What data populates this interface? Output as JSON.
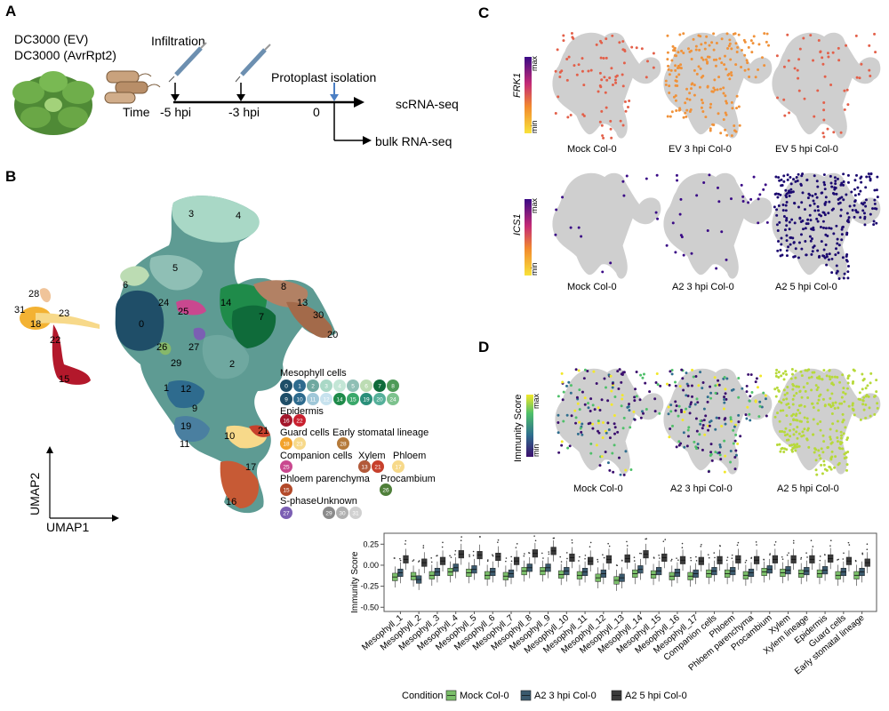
{
  "panels": {
    "a": "A",
    "b": "B",
    "c": "C",
    "d": "D"
  },
  "panel_a": {
    "strain_ev": "DC3000 (EV)",
    "strain_avr": "DC3000 (AvrRpt2)",
    "infiltration": "Infiltration",
    "time_label": "Time",
    "t1": "-5 hpi",
    "t2": "-3 hpi",
    "t3": "0",
    "protoplast": "Protoplast isolation",
    "scrna": "scRNA-seq",
    "bulk": "bulk RNA-seq"
  },
  "panel_b": {
    "umap1": "UMAP1",
    "umap2": "UMAP2",
    "clusters": [
      "3",
      "4",
      "5",
      "6",
      "24",
      "25",
      "14",
      "8",
      "13",
      "30",
      "20",
      "7",
      "28",
      "31",
      "23",
      "18",
      "22",
      "19",
      "0",
      "26",
      "27",
      "29",
      "2",
      "1",
      "12",
      "9",
      "10",
      "21",
      "11",
      "17",
      "16",
      "15"
    ],
    "legend": {
      "mesophyll": "Mesophyll cells",
      "mesophyll_ids": [
        "0",
        "1",
        "2",
        "3",
        "4",
        "5",
        "6",
        "7",
        "8",
        "9",
        "10",
        "11",
        "12",
        "14",
        "15",
        "19",
        "20",
        "24"
      ],
      "epidermis": "Epidermis",
      "epidermis_ids": [
        "16",
        "22"
      ],
      "guard": "Guard cells",
      "guard_ids": [
        "18",
        "23"
      ],
      "early_stomatal": "Early stomatal lineage",
      "early_stomatal_ids": [
        "28"
      ],
      "companion": "Companion cells",
      "companion_ids": [
        "25"
      ],
      "xylem": "Xylem",
      "xylem_ids": [
        "13",
        "21"
      ],
      "phloem": "Phloem",
      "phloem_ids": [
        "17"
      ],
      "phloem_par": "Phloem parenchyma",
      "phloem_par_ids": [
        "15"
      ],
      "procambium": "Procambium",
      "procambium_ids": [
        "26"
      ],
      "sphase": "S-phase",
      "sphase_ids": [
        "27"
      ],
      "unknown": "Unknown",
      "unknown_ids": [
        "29",
        "30",
        "31"
      ]
    }
  },
  "panel_c": {
    "gene1": "FRK1",
    "gene2": "ICS1",
    "max": "max",
    "min": "min",
    "row1": [
      "Mock Col-0",
      "EV 3 hpi Col-0",
      "EV 5 hpi Col-0"
    ],
    "row2": [
      "Mock Col-0",
      "A2 3 hpi Col-0",
      "A2 5 hpi Col-0"
    ]
  },
  "panel_d": {
    "score_label": "Immunity Score",
    "max": "max",
    "min": "min",
    "row": [
      "Mock Col-0",
      "A2 3 hpi Col-0",
      "A2 5 hpi Col-0"
    ]
  },
  "chart_data": {
    "type": "box",
    "ylabel": "Immunity Score",
    "ylim": [
      -0.55,
      0.38
    ],
    "yticks": [
      "0.25",
      "0.00",
      "-0.25",
      "-0.50"
    ],
    "categories": [
      "Mesophyll_1",
      "Mesophyll_2",
      "Mesophyll_3",
      "Mesophyll_4",
      "Mesophyll_5",
      "Mesophyll_6",
      "Mesophyll_7",
      "Mesophyll_8",
      "Mesophyll_9",
      "Mesophyll_10",
      "Mesophyll_11",
      "Mesophyll_12",
      "Mesophyll_13",
      "Mesophyll_14",
      "Mesophyll_15",
      "Mesophyll_16",
      "Mesophyll_17",
      "Companion cells",
      "Phloem",
      "Phloem parenchyma",
      "Procambium",
      "Xylem",
      "Xylem lineage",
      "Epidermis",
      "Guard cells",
      "Early stomatal lineage"
    ],
    "legend_title": "Condition",
    "series": [
      {
        "name": "Mock Col-0",
        "color": "#7bbf6a",
        "medians": [
          -0.14,
          -0.13,
          -0.12,
          -0.08,
          -0.09,
          -0.12,
          -0.13,
          -0.07,
          -0.07,
          -0.11,
          -0.12,
          -0.15,
          -0.18,
          -0.1,
          -0.11,
          -0.13,
          -0.13,
          -0.1,
          -0.1,
          -0.12,
          -0.08,
          -0.09,
          -0.1,
          -0.1,
          -0.12,
          -0.12
        ]
      },
      {
        "name": "A2 3 hpi Col-0",
        "color": "#3b5a6e",
        "medians": [
          -0.09,
          -0.17,
          -0.08,
          -0.03,
          -0.05,
          -0.08,
          -0.1,
          -0.03,
          -0.03,
          -0.07,
          -0.08,
          -0.1,
          -0.15,
          -0.05,
          -0.07,
          -0.09,
          -0.1,
          -0.07,
          -0.07,
          -0.09,
          -0.05,
          -0.06,
          -0.07,
          -0.06,
          -0.08,
          -0.08
        ]
      },
      {
        "name": "A2 5 hpi Col-0",
        "color": "#3a3a3a",
        "medians": [
          0.07,
          0.03,
          0.05,
          0.13,
          0.12,
          0.1,
          0.05,
          0.14,
          0.17,
          0.09,
          0.05,
          0.07,
          0.08,
          0.13,
          0.09,
          0.06,
          0.05,
          0.06,
          0.07,
          0.06,
          0.07,
          0.07,
          0.07,
          0.08,
          0.05,
          0.03
        ]
      }
    ]
  }
}
